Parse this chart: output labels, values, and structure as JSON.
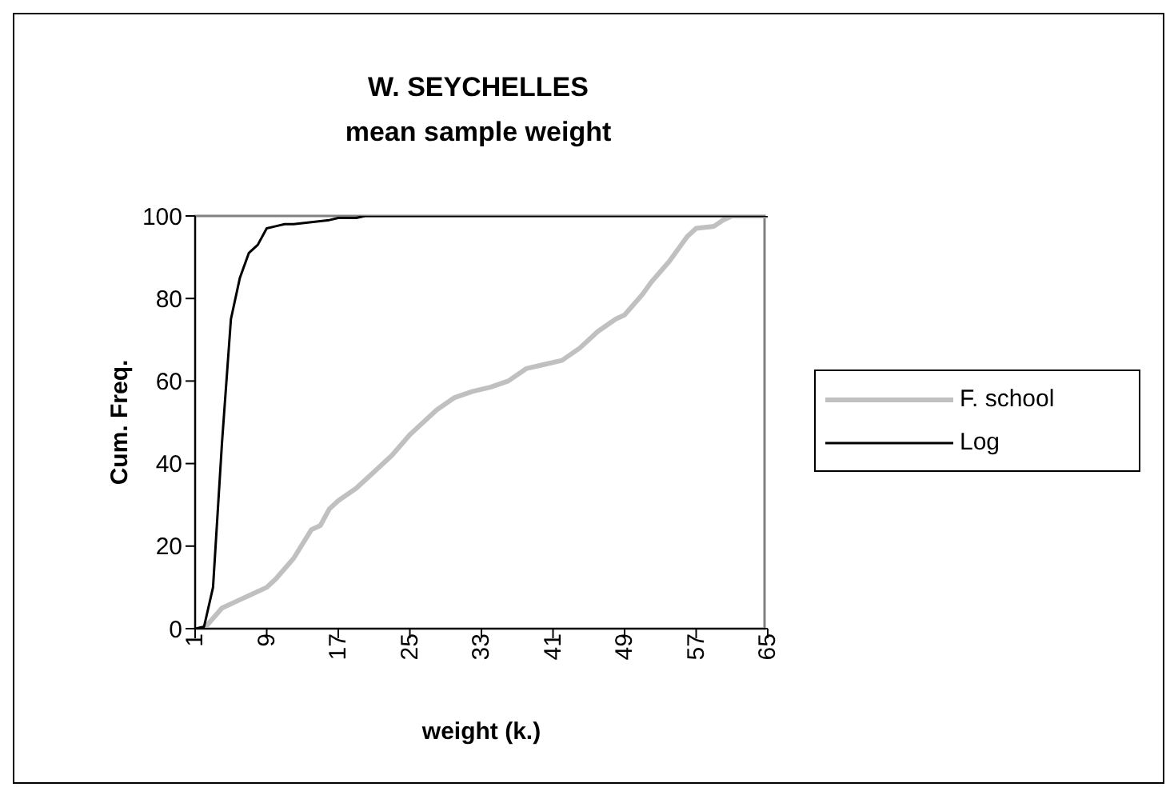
{
  "chart_data": {
    "type": "line",
    "title": "W. SEYCHELLES\nmean sample weight",
    "xlabel": "weight (k.)",
    "ylabel": "Cum. Freq.",
    "xlim": [
      1,
      65
    ],
    "xticks": [
      1,
      9,
      17,
      25,
      33,
      41,
      49,
      57,
      65
    ],
    "ylim": [
      0,
      100
    ],
    "yticks": [
      0,
      20,
      40,
      60,
      80,
      100
    ],
    "grid": false,
    "legend": "right",
    "marker": "none",
    "line_style": "solid",
    "series": [
      {
        "name": "F. school",
        "color": "#c0c0c0",
        "x": [
          2,
          4,
          6,
          7,
          9,
          10,
          12,
          14,
          15,
          16,
          17,
          19,
          21,
          23,
          25,
          26,
          28,
          30,
          32,
          34,
          36,
          38,
          40,
          42,
          44,
          46,
          48,
          49,
          51,
          52,
          54,
          55,
          56,
          57,
          59,
          60,
          61,
          65
        ],
        "values": [
          0,
          5,
          7,
          8,
          10,
          12,
          17,
          24,
          25,
          29,
          31,
          34,
          38,
          42,
          47,
          49,
          53,
          56,
          57.5,
          58.5,
          60,
          63,
          64,
          65,
          68,
          72,
          75,
          76,
          81,
          84,
          89,
          92,
          95,
          97,
          97.5,
          99,
          100,
          100
        ]
      },
      {
        "name": "Log",
        "color": "#000000",
        "x": [
          1,
          2,
          3,
          4,
          5,
          6,
          7,
          8,
          9,
          10,
          11,
          12,
          14,
          16,
          17,
          19,
          20,
          65
        ],
        "values": [
          0,
          0.5,
          10,
          45,
          75,
          85,
          91,
          93,
          97,
          97.5,
          98,
          98,
          98.5,
          99,
          99.5,
          99.5,
          100,
          100
        ]
      }
    ]
  }
}
